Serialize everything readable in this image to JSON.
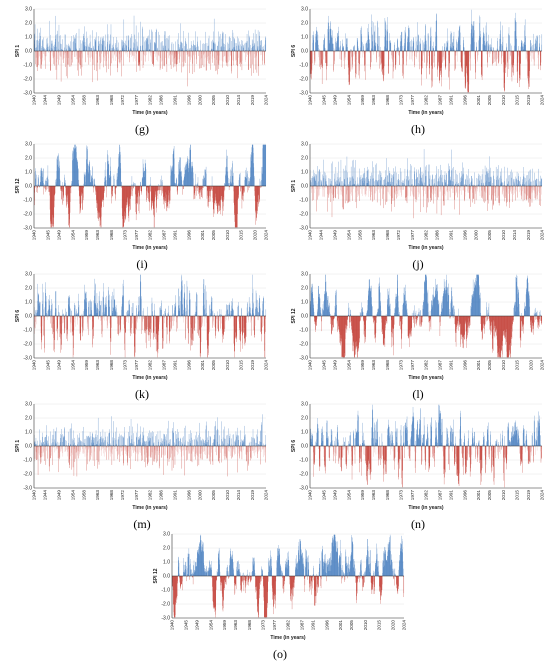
{
  "colors": {
    "positive": "#2f6db6",
    "negative": "#b81e14",
    "negative_light": "#e6a3a0",
    "axis": "#333333",
    "grid": "#e6e6e6"
  },
  "chart_data": [
    {
      "id": "g",
      "type": "bar",
      "caption": "(g)",
      "ylabel": "SPI 1",
      "xlabel": "Time (in years)",
      "ylim": [
        -3.0,
        3.0
      ],
      "yticks": [
        "3.0",
        "2.0",
        "1.0",
        "0.0",
        "-1.0",
        "-2.0",
        "-3.0"
      ],
      "xticks": [
        "1940",
        "1944",
        "1949",
        "1954",
        "1958",
        "1963",
        "1968",
        "1972",
        "1977",
        "1982",
        "1986",
        "1991",
        "1996",
        "2000",
        "2005",
        "2010",
        "2014",
        "2019",
        "2024"
      ],
      "x_range": [
        1940,
        2024
      ],
      "timescale_months": 1,
      "seed": 7
    },
    {
      "id": "h",
      "type": "bar",
      "caption": "(h)",
      "ylabel": "SPI 6",
      "xlabel": "Time (in years)",
      "ylim": [
        -3.0,
        3.0
      ],
      "yticks": [
        "3.0",
        "2.0",
        "1.0",
        "0.0",
        "-1.0",
        "-2.0",
        "-3.0"
      ],
      "xticks": [
        "1940",
        "1945",
        "1949",
        "1954",
        "1959",
        "1963",
        "1968",
        "1973",
        "1977",
        "1982",
        "1987",
        "1991",
        "1996",
        "2001",
        "2005",
        "2010",
        "2015",
        "2019",
        "2024"
      ],
      "x_range": [
        1940,
        2024
      ],
      "timescale_months": 6,
      "seed": 13
    },
    {
      "id": "i",
      "type": "bar",
      "caption": "(i)",
      "ylabel": "SPI 12",
      "xlabel": "Time (in years)",
      "ylim": [
        -3.0,
        3.0
      ],
      "yticks": [
        "3.0",
        "2.0",
        "1.0",
        "0.0",
        "-1.0",
        "-2.0",
        "-3.0"
      ],
      "xticks": [
        "1940",
        "1945",
        "1949",
        "1954",
        "1959",
        "1963",
        "1968",
        "1973",
        "1977",
        "1982",
        "1987",
        "1991",
        "1996",
        "2001",
        "2005",
        "2010",
        "2015",
        "2020",
        "2024"
      ],
      "x_range": [
        1940,
        2024
      ],
      "timescale_months": 12,
      "seed": 21
    },
    {
      "id": "j",
      "type": "bar",
      "caption": "(j)",
      "ylabel": "SPI 1",
      "xlabel": "Time (in years)",
      "ylim": [
        -3.0,
        3.0
      ],
      "yticks": [
        "3.0",
        "2.0",
        "1.0",
        "0.0",
        "-1.0",
        "-2.0",
        "-3.0"
      ],
      "xticks": [
        "1940",
        "1944",
        "1949",
        "1954",
        "1958",
        "1963",
        "1968",
        "1972",
        "1977",
        "1982",
        "1986",
        "1991",
        "1996",
        "2000",
        "2005",
        "2010",
        "2014",
        "2019",
        "2024"
      ],
      "x_range": [
        1940,
        2024
      ],
      "timescale_months": 1,
      "seed": 29
    },
    {
      "id": "k",
      "type": "bar",
      "caption": "(k)",
      "ylabel": "SPI 6",
      "xlabel": "Time (in years)",
      "ylim": [
        -3.0,
        3.0
      ],
      "yticks": [
        "3.0",
        "2.0",
        "1.0",
        "0.0",
        "-1.0",
        "-2.0",
        "-3.0"
      ],
      "xticks": [
        "1940",
        "1945",
        "1949",
        "1954",
        "1959",
        "1963",
        "1968",
        "1973",
        "1977",
        "1982",
        "1987",
        "1991",
        "1996",
        "2001",
        "2005",
        "2010",
        "2015",
        "2019",
        "2024"
      ],
      "x_range": [
        1940,
        2024
      ],
      "timescale_months": 6,
      "seed": 37
    },
    {
      "id": "l",
      "type": "bar",
      "caption": "(l)",
      "ylabel": "SPI 12",
      "xlabel": "Time (in years)",
      "ylim": [
        -3.0,
        3.0
      ],
      "yticks": [
        "3.0",
        "2.0",
        "1.0",
        "0.0",
        "-1.0",
        "-2.0",
        "-3.0"
      ],
      "xticks": [
        "1940",
        "1945",
        "1949",
        "1954",
        "1959",
        "1963",
        "1968",
        "1973",
        "1977",
        "1982",
        "1987",
        "1991",
        "1996",
        "2001",
        "2005",
        "2010",
        "2015",
        "2020",
        "2024"
      ],
      "x_range": [
        1940,
        2024
      ],
      "timescale_months": 12,
      "seed": 43
    },
    {
      "id": "m",
      "type": "bar",
      "caption": "(m)",
      "ylabel": "SPI 1",
      "xlabel": "Time (in years)",
      "ylim": [
        -3.0,
        3.0
      ],
      "yticks": [
        "3.0",
        "2.0",
        "1.0",
        "0.0",
        "-1.0",
        "-2.0",
        "-3.0"
      ],
      "xticks": [
        "1940",
        "1944",
        "1949",
        "1954",
        "1958",
        "1963",
        "1968",
        "1972",
        "1977",
        "1982",
        "1986",
        "1991",
        "1996",
        "2000",
        "2005",
        "2010",
        "2014",
        "2019",
        "2024"
      ],
      "x_range": [
        1940,
        2024
      ],
      "timescale_months": 1,
      "seed": 53
    },
    {
      "id": "n",
      "type": "bar",
      "caption": "(n)",
      "ylabel": "SPI 6",
      "xlabel": "Time (in years)",
      "ylim": [
        -3.0,
        3.0
      ],
      "yticks": [
        "3.0",
        "2.0",
        "1.0",
        "0.0",
        "-1.0",
        "-2.0",
        "-3.0"
      ],
      "xticks": [
        "1940",
        "1945",
        "1949",
        "1954",
        "1959",
        "1963",
        "1968",
        "1973",
        "1977",
        "1982",
        "1987",
        "1991",
        "1996",
        "2001",
        "2005",
        "2010",
        "2015",
        "2019",
        "2024"
      ],
      "x_range": [
        1940,
        2024
      ],
      "timescale_months": 6,
      "seed": 61
    },
    {
      "id": "o",
      "type": "bar",
      "caption": "(o)",
      "ylabel": "SPI 12",
      "xlabel": "Time (in years)",
      "ylim": [
        -3.0,
        3.0
      ],
      "yticks": [
        "3.0",
        "2.0",
        "1.0",
        "0.0",
        "-1.0",
        "-2.0",
        "-3.0"
      ],
      "xticks": [
        "1940",
        "1945",
        "1949",
        "1954",
        "1959",
        "1963",
        "1968",
        "1973",
        "1977",
        "1982",
        "1987",
        "1991",
        "1996",
        "2001",
        "2005",
        "2010",
        "2015",
        "2020",
        "2024"
      ],
      "x_range": [
        1940,
        2024
      ],
      "timescale_months": 12,
      "seed": 71
    }
  ]
}
